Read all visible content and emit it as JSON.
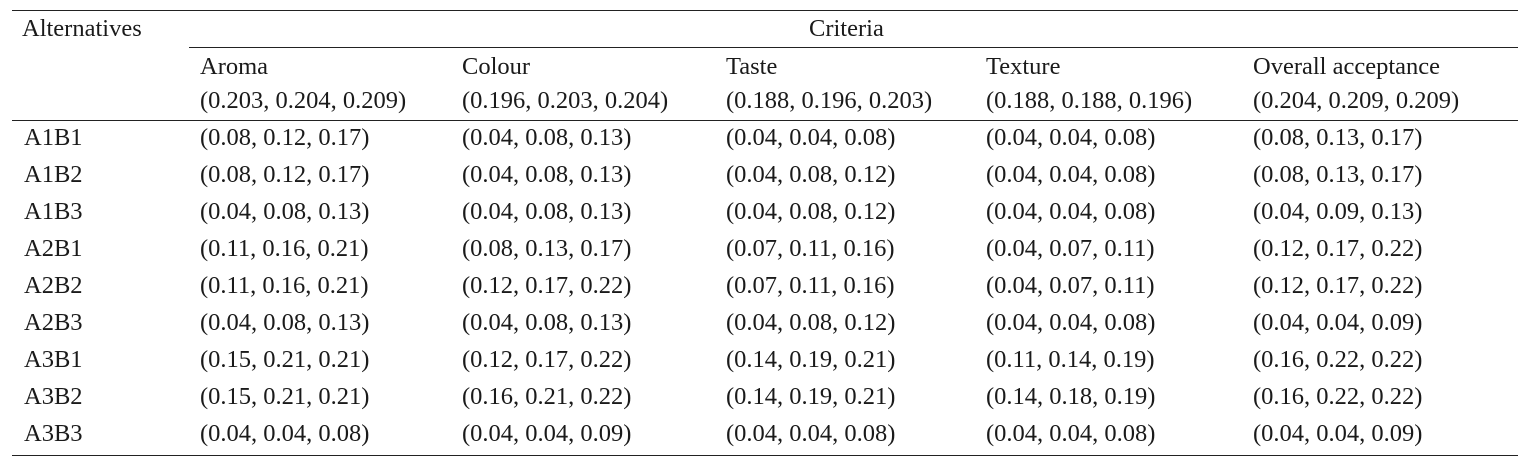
{
  "table": {
    "stub_header": "Alternatives",
    "group_header": "Criteria",
    "columns": [
      {
        "name": "Aroma",
        "weight": "(0.203, 0.204, 0.209)"
      },
      {
        "name": "Colour",
        "weight": "(0.196, 0.203, 0.204)"
      },
      {
        "name": "Taste",
        "weight": "(0.188, 0.196, 0.203)"
      },
      {
        "name": "Texture",
        "weight": "(0.188, 0.188, 0.196)"
      },
      {
        "name": "Overall acceptance",
        "weight": "(0.204, 0.209, 0.209)"
      }
    ],
    "rows": [
      {
        "label": "A1B1",
        "cells": [
          "(0.08, 0.12, 0.17)",
          "(0.04, 0.08, 0.13)",
          "(0.04, 0.04, 0.08)",
          "(0.04, 0.04, 0.08)",
          "(0.08, 0.13, 0.17)"
        ]
      },
      {
        "label": "A1B2",
        "cells": [
          "(0.08, 0.12, 0.17)",
          "(0.04, 0.08, 0.13)",
          "(0.04, 0.08, 0.12)",
          "(0.04, 0.04, 0.08)",
          "(0.08, 0.13, 0.17)"
        ]
      },
      {
        "label": "A1B3",
        "cells": [
          "(0.04, 0.08, 0.13)",
          "(0.04, 0.08, 0.13)",
          "(0.04, 0.08, 0.12)",
          "(0.04, 0.04, 0.08)",
          "(0.04, 0.09, 0.13)"
        ]
      },
      {
        "label": "A2B1",
        "cells": [
          "(0.11, 0.16, 0.21)",
          "(0.08, 0.13, 0.17)",
          "(0.07, 0.11, 0.16)",
          "(0.04, 0.07, 0.11)",
          "(0.12, 0.17, 0.22)"
        ]
      },
      {
        "label": "A2B2",
        "cells": [
          "(0.11, 0.16, 0.21)",
          "(0.12, 0.17, 0.22)",
          "(0.07, 0.11, 0.16)",
          "(0.04, 0.07, 0.11)",
          "(0.12, 0.17, 0.22)"
        ]
      },
      {
        "label": "A2B3",
        "cells": [
          "(0.04, 0.08, 0.13)",
          "(0.04, 0.08, 0.13)",
          "(0.04, 0.08, 0.12)",
          "(0.04, 0.04, 0.08)",
          "(0.04, 0.04, 0.09)"
        ]
      },
      {
        "label": "A3B1",
        "cells": [
          "(0.15, 0.21, 0.21)",
          "(0.12, 0.17, 0.22)",
          "(0.14, 0.19, 0.21)",
          "(0.11, 0.14, 0.19)",
          "(0.16, 0.22, 0.22)"
        ]
      },
      {
        "label": "A3B2",
        "cells": [
          "(0.15, 0.21, 0.21)",
          "(0.16, 0.21, 0.22)",
          "(0.14, 0.19, 0.21)",
          "(0.14, 0.18, 0.19)",
          "(0.16, 0.22, 0.22)"
        ]
      },
      {
        "label": "A3B3",
        "cells": [
          "(0.04, 0.04, 0.08)",
          "(0.04, 0.04, 0.09)",
          "(0.04, 0.04, 0.08)",
          "(0.04, 0.04, 0.08)",
          "(0.04, 0.04, 0.09)"
        ]
      }
    ]
  }
}
